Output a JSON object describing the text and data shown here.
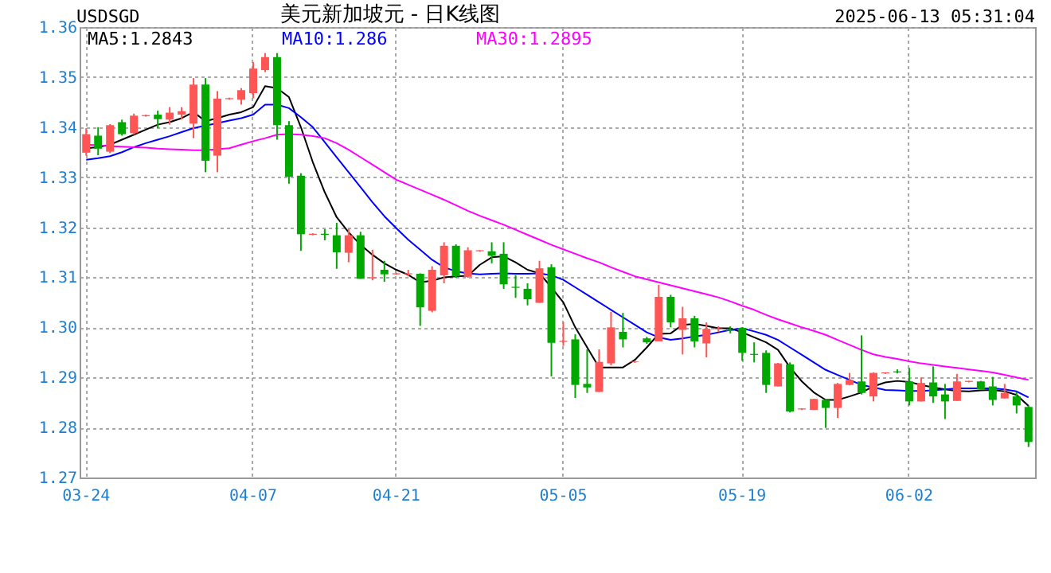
{
  "chart_data": {
    "type": "candlestick",
    "title": "美元新加坡元 - 日K线图",
    "annotations": [
      "USDSGD",
      "2025-06-13 05:31:04"
    ],
    "categories": [
      "03-24",
      null,
      null,
      null,
      null,
      null,
      null,
      null,
      null,
      null,
      null,
      null,
      null,
      null,
      "04-07",
      null,
      null,
      null,
      null,
      null,
      null,
      null,
      null,
      null,
      null,
      null,
      "04-21",
      null,
      null,
      null,
      null,
      null,
      null,
      null,
      null,
      null,
      null,
      null,
      null,
      null,
      "05-05",
      null,
      null,
      null,
      null,
      null,
      null,
      null,
      null,
      null,
      null,
      null,
      null,
      null,
      null,
      "05-19",
      null,
      null,
      null,
      null,
      null,
      null,
      null,
      null,
      null,
      null,
      null,
      null,
      null,
      "06-02",
      null,
      null,
      null,
      null,
      null,
      null,
      null,
      null,
      null,
      null
    ],
    "ohlc": [
      [
        1.3349,
        1.3398,
        1.3343,
        1.3386
      ],
      [
        1.3383,
        1.34,
        1.3344,
        1.3357
      ],
      [
        1.3351,
        1.3406,
        1.3348,
        1.3404
      ],
      [
        1.341,
        1.3415,
        1.3383,
        1.3386
      ],
      [
        1.3388,
        1.3427,
        1.3385,
        1.3423
      ],
      [
        1.3422,
        1.3425,
        1.3421,
        1.3424
      ],
      [
        1.3425,
        1.3433,
        1.3398,
        1.3416
      ],
      [
        1.3415,
        1.344,
        1.3405,
        1.3429
      ],
      [
        1.3425,
        1.344,
        1.3415,
        1.3432
      ],
      [
        1.3407,
        1.3498,
        1.3378,
        1.3485
      ],
      [
        1.3485,
        1.3498,
        1.331,
        1.3333
      ],
      [
        1.3343,
        1.3472,
        1.331,
        1.3457
      ],
      [
        1.3456,
        1.3459,
        1.3455,
        1.3458
      ],
      [
        1.3455,
        1.3478,
        1.3445,
        1.3474
      ],
      [
        1.3468,
        1.353,
        1.3458,
        1.3517
      ],
      [
        1.3514,
        1.3548,
        1.351,
        1.354
      ],
      [
        1.354,
        1.3548,
        1.3375,
        1.3404
      ],
      [
        1.3404,
        1.3412,
        1.3287,
        1.3301
      ],
      [
        1.3303,
        1.3308,
        1.3153,
        1.3186
      ],
      [
        1.3185,
        1.3188,
        1.3184,
        1.3187
      ],
      [
        1.3187,
        1.3196,
        1.3174,
        1.3185
      ],
      [
        1.3184,
        1.3209,
        1.3117,
        1.315
      ],
      [
        1.3149,
        1.3197,
        1.313,
        1.3184
      ],
      [
        1.3184,
        1.3191,
        1.3097,
        1.3097
      ],
      [
        1.3098,
        1.3155,
        1.3094,
        1.31
      ],
      [
        1.3115,
        1.3133,
        1.3091,
        1.3106
      ],
      [
        1.3106,
        1.3109,
        1.3105,
        1.3108
      ],
      [
        1.3106,
        1.3115,
        1.3102,
        1.3108
      ],
      [
        1.3107,
        1.3108,
        1.3003,
        1.304
      ],
      [
        1.3033,
        1.3122,
        1.303,
        1.3115
      ],
      [
        1.3104,
        1.317,
        1.3088,
        1.3163
      ],
      [
        1.3163,
        1.3166,
        1.3099,
        1.3102
      ],
      [
        1.3101,
        1.316,
        1.3099,
        1.3154
      ],
      [
        1.3152,
        1.3154,
        1.3151,
        1.3154
      ],
      [
        1.3152,
        1.317,
        1.3128,
        1.3143
      ],
      [
        1.3147,
        1.317,
        1.3077,
        1.3086
      ],
      [
        1.3081,
        1.3104,
        1.3059,
        1.3079
      ],
      [
        1.3077,
        1.3088,
        1.3044,
        1.3056
      ],
      [
        1.3049,
        1.3133,
        1.3049,
        1.3118
      ],
      [
        1.312,
        1.3126,
        1.2902,
        1.2969
      ],
      [
        1.2971,
        1.301,
        1.2963,
        1.2973
      ],
      [
        1.2976,
        1.2986,
        1.2859,
        1.2885
      ],
      [
        1.2887,
        1.2956,
        1.2869,
        1.288
      ],
      [
        1.2871,
        1.2956,
        1.2871,
        1.2931
      ],
      [
        1.2928,
        1.3031,
        1.2924,
        1.3
      ],
      [
        1.2991,
        1.3029,
        1.296,
        1.2976
      ],
      [
        1.2931,
        1.2933,
        1.2929,
        1.2932
      ],
      [
        1.2978,
        1.2981,
        1.2967,
        1.297
      ],
      [
        1.2972,
        1.3085,
        1.2972,
        1.3061
      ],
      [
        1.3061,
        1.3065,
        1.3,
        1.301
      ],
      [
        1.2995,
        1.3041,
        1.2946,
        1.3018
      ],
      [
        1.3018,
        1.3023,
        1.296,
        1.2972
      ],
      [
        1.2968,
        1.301,
        1.294,
        1.2997
      ],
      [
        1.2996,
        1.3002,
        1.2991,
        1.2998
      ],
      [
        1.2995,
        1.3002,
        1.2988,
        1.2993
      ],
      [
        1.2999,
        1.3,
        1.2933,
        1.2949
      ],
      [
        1.2947,
        1.297,
        1.293,
        1.2945
      ],
      [
        1.2949,
        1.2954,
        1.2869,
        1.2885
      ],
      [
        1.2882,
        1.2929,
        1.2882,
        1.2928
      ],
      [
        1.2926,
        1.293,
        1.283,
        1.2832
      ],
      [
        1.2836,
        1.2838,
        1.2835,
        1.2838
      ],
      [
        1.2835,
        1.2857,
        1.2835,
        1.2857
      ],
      [
        1.2855,
        1.2857,
        1.2799,
        1.2839
      ],
      [
        1.2839,
        1.2889,
        1.2819,
        1.2887
      ],
      [
        1.2885,
        1.2909,
        1.2884,
        1.2895
      ],
      [
        1.2892,
        1.2984,
        1.2866,
        1.2869
      ],
      [
        1.2862,
        1.291,
        1.2852,
        1.2909
      ],
      [
        1.2908,
        1.291,
        1.2907,
        1.291
      ],
      [
        1.2912,
        1.2916,
        1.2908,
        1.291
      ],
      [
        1.2892,
        1.2919,
        1.2844,
        1.2852
      ],
      [
        1.2852,
        1.29,
        1.2852,
        1.2889
      ],
      [
        1.289,
        1.2922,
        1.2849,
        1.2862
      ],
      [
        1.2866,
        1.2887,
        1.2817,
        1.2852
      ],
      [
        1.2853,
        1.2907,
        1.2853,
        1.2892
      ],
      [
        1.2891,
        1.2893,
        1.289,
        1.2893
      ],
      [
        1.2892,
        1.2893,
        1.2876,
        1.2876
      ],
      [
        1.2882,
        1.2901,
        1.2844,
        1.2855
      ],
      [
        1.2858,
        1.2887,
        1.2858,
        1.2869
      ],
      [
        1.2862,
        1.2871,
        1.2828,
        1.2844
      ],
      [
        1.2841,
        1.2844,
        1.2761,
        1.2771
      ]
    ],
    "colors": [
      "#ff5555",
      "#00a800",
      "#ff5555",
      "#00a800",
      "#ff5555",
      "#ff5555",
      "#00a800",
      "#ff5555",
      "#ff5555",
      "#ff5555",
      "#00a800",
      "#ff5555",
      "#ff5555",
      "#ff5555",
      "#ff5555",
      "#ff5555",
      "#00a800",
      "#00a800",
      "#00a800",
      "#ff5555",
      "#00a800",
      "#00a800",
      "#ff5555",
      "#00a800",
      "#ff5555",
      "#00a800",
      "#ff5555",
      "#ff5555",
      "#00a800",
      "#ff5555",
      "#ff5555",
      "#00a800",
      "#ff5555",
      "#ff5555",
      "#00a800",
      "#00a800",
      "#00a800",
      "#00a800",
      "#ff5555",
      "#00a800",
      "#ff5555",
      "#00a800",
      "#00a800",
      "#ff5555",
      "#ff5555",
      "#00a800",
      "#ff5555",
      "#00a800",
      "#ff5555",
      "#00a800",
      "#ff5555",
      "#00a800",
      "#ff5555",
      "#ff5555",
      "#00a800",
      "#00a800",
      "#00a800",
      "#00a800",
      "#ff5555",
      "#00a800",
      "#ff5555",
      "#ff5555",
      "#00a800",
      "#ff5555",
      "#ff5555",
      "#00a800",
      "#ff5555",
      "#ff5555",
      "#00a800",
      "#00a800",
      "#ff5555",
      "#00a800",
      "#00a800",
      "#ff5555",
      "#ff5555",
      "#00a800",
      "#00a800",
      "#ff5555",
      "#00a800",
      "#00a800"
    ],
    "series": [
      {
        "name": "MA5:1.2843",
        "type": "line",
        "color": "#000000",
        "values": [
          1.3358,
          1.336,
          1.3365,
          1.3375,
          1.3385,
          1.3395,
          1.3405,
          1.341,
          1.3418,
          1.343,
          1.3412,
          1.3418,
          1.3425,
          1.343,
          1.344,
          1.3482,
          1.3478,
          1.346,
          1.34,
          1.333,
          1.327,
          1.322,
          1.319,
          1.3165,
          1.3145,
          1.3128,
          1.3115,
          1.3105,
          1.309,
          1.3093,
          1.31,
          1.3102,
          1.3103,
          1.3125,
          1.314,
          1.3142,
          1.313,
          1.3115,
          1.3108,
          1.308,
          1.305,
          1.3,
          1.296,
          1.292,
          1.292,
          1.292,
          1.2935,
          1.296,
          1.2987,
          1.2988,
          1.3005,
          1.3007,
          1.3003,
          1.2998,
          1.2998,
          1.299,
          1.298,
          1.297,
          1.2955,
          1.292,
          1.2892,
          1.287,
          1.2855,
          1.2855,
          1.2862,
          1.287,
          1.2882,
          1.289,
          1.2893,
          1.2891,
          1.2885,
          1.288,
          1.2876,
          1.2873,
          1.2872,
          1.2874,
          1.2875,
          1.2872,
          1.2865,
          1.2843
        ]
      },
      {
        "name": "MA10:1.286",
        "type": "line",
        "color": "#0000ff",
        "values": [
          1.3335,
          1.3338,
          1.3342,
          1.335,
          1.336,
          1.3368,
          1.3375,
          1.3382,
          1.339,
          1.3398,
          1.3403,
          1.3408,
          1.3413,
          1.3418,
          1.3425,
          1.3445,
          1.3445,
          1.3438,
          1.342,
          1.34,
          1.337,
          1.334,
          1.331,
          1.328,
          1.325,
          1.3222,
          1.3198,
          1.3175,
          1.3155,
          1.3135,
          1.312,
          1.3112,
          1.3108,
          1.3106,
          1.3107,
          1.3108,
          1.3107,
          1.3107,
          1.3108,
          1.3104,
          1.3095,
          1.308,
          1.3065,
          1.305,
          1.3035,
          1.302,
          1.3005,
          1.299,
          1.298,
          1.2975,
          1.2978,
          1.2982,
          1.2985,
          1.299,
          1.2995,
          1.2998,
          1.2992,
          1.2985,
          1.2975,
          1.296,
          1.2945,
          1.293,
          1.2915,
          1.2905,
          1.2895,
          1.2885,
          1.288,
          1.2875,
          1.2874,
          1.2873,
          1.2873,
          1.2874,
          1.2876,
          1.2878,
          1.2878,
          1.2878,
          1.2878,
          1.2876,
          1.2872,
          1.286
        ]
      },
      {
        "name": "MA30:1.2895",
        "type": "line",
        "color": "#ff00ff",
        "values": [
          1.3365,
          1.3364,
          1.3362,
          1.3361,
          1.336,
          1.3359,
          1.3357,
          1.3356,
          1.3355,
          1.3354,
          1.3354,
          1.3356,
          1.3358,
          1.3365,
          1.3372,
          1.3378,
          1.3385,
          1.3386,
          1.3385,
          1.3382,
          1.3378,
          1.3368,
          1.3355,
          1.334,
          1.3325,
          1.331,
          1.3295,
          1.3285,
          1.3275,
          1.3265,
          1.3255,
          1.3244,
          1.3233,
          1.3223,
          1.3214,
          1.3205,
          1.3195,
          1.3185,
          1.3175,
          1.3165,
          1.3156,
          1.3147,
          1.3138,
          1.313,
          1.312,
          1.3111,
          1.3102,
          1.3096,
          1.309,
          1.3084,
          1.3078,
          1.3072,
          1.3066,
          1.306,
          1.3052,
          1.3043,
          1.3035,
          1.3025,
          1.3016,
          1.3008,
          1.3,
          1.2993,
          1.2985,
          1.2975,
          1.2965,
          1.2955,
          1.2946,
          1.2941,
          1.2937,
          1.2932,
          1.2928,
          1.2925,
          1.2922,
          1.2919,
          1.2916,
          1.2913,
          1.291,
          1.2905,
          1.29,
          1.2895
        ]
      }
    ],
    "ylim": [
      1.27,
      1.36
    ],
    "yticks": [
      {
        "value": 1.27,
        "label": "1.27"
      },
      {
        "value": 1.28,
        "label": "1.28"
      },
      {
        "value": 1.29,
        "label": "1.29"
      },
      {
        "value": 1.3,
        "label": "1.30"
      },
      {
        "value": 1.31,
        "label": "1.31"
      },
      {
        "value": 1.32,
        "label": "1.32"
      },
      {
        "value": 1.33,
        "label": "1.33"
      },
      {
        "value": 1.34,
        "label": "1.34"
      },
      {
        "value": 1.35,
        "label": "1.35"
      },
      {
        "value": 1.36,
        "label": "1.36"
      }
    ],
    "grid": true,
    "legend": "top left"
  }
}
